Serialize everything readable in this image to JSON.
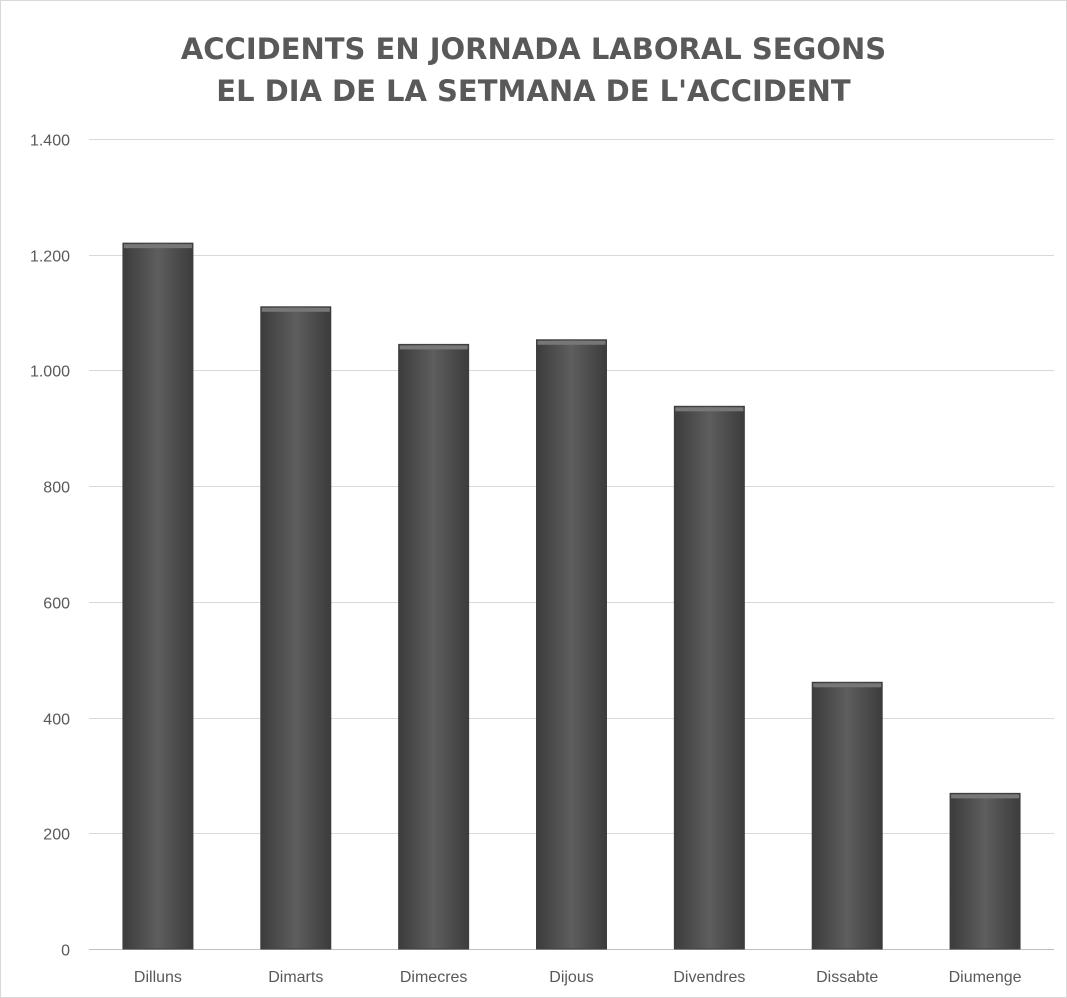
{
  "chart_data": {
    "type": "bar",
    "title_lines": [
      "ACCIDENTS EN JORNADA LABORAL SEGONS",
      "EL DIA DE LA SETMANA DE L'ACCIDENT"
    ],
    "xlabel": "",
    "ylabel": "",
    "categories": [
      "Dilluns",
      "Dimarts",
      "Dimecres",
      "Dijous",
      "Divendres",
      "Dissabte",
      "Diumenge"
    ],
    "values": [
      1220,
      1110,
      1045,
      1053,
      938,
      461,
      269
    ],
    "ylim": [
      0,
      1400
    ],
    "yticks": [
      0,
      200,
      400,
      600,
      800,
      1000,
      1200,
      1400
    ],
    "ytick_labels": [
      "0",
      "200",
      "400",
      "600",
      "800",
      "1.000",
      "1.200",
      "1.400"
    ],
    "grid": true,
    "legend": "none",
    "colors": {
      "bar_fill": "#555555",
      "bar_edge": "#3f3f3f",
      "grid": "#d9d9d9",
      "text": "#595959"
    }
  }
}
